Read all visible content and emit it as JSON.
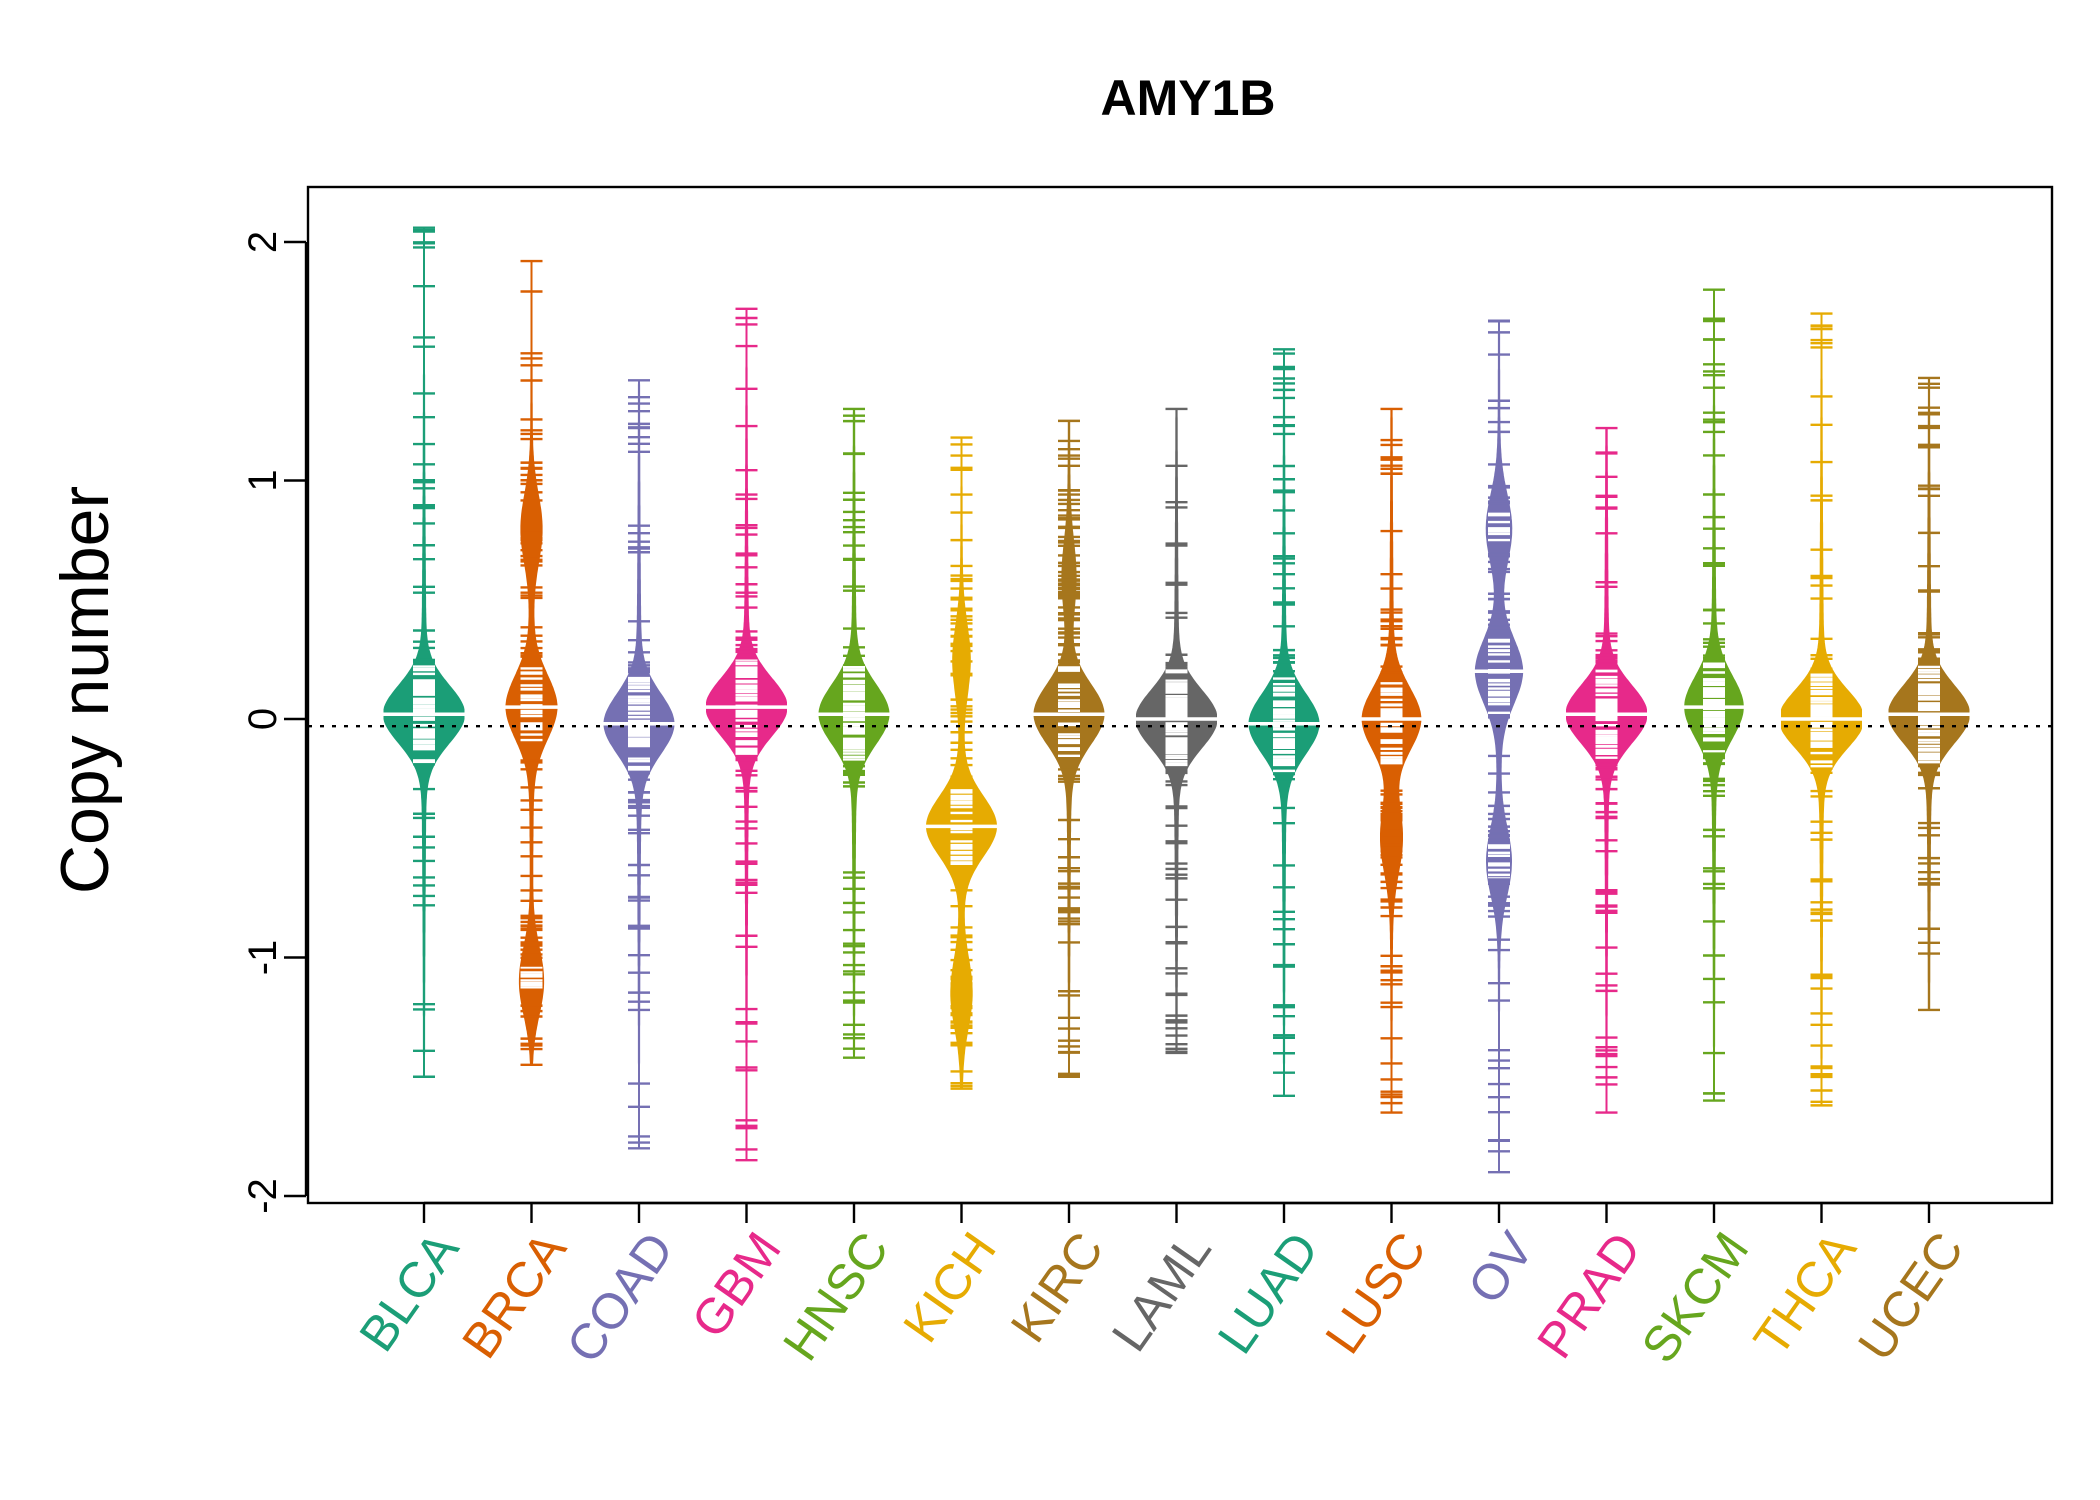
{
  "chart_data": {
    "type": "beanplot",
    "title": "AMY1B",
    "ylabel": "Copy number",
    "xlabel": "",
    "ylim": [
      -2.05,
      2.2
    ],
    "yticks": [
      -2,
      -1,
      0,
      1,
      2
    ],
    "ytick_labels": [
      "-2",
      "-1",
      "0",
      "1",
      "2"
    ],
    "reference_line": -0.03,
    "grid": false,
    "legend": "none",
    "categories": [
      "BLCA",
      "BRCA",
      "COAD",
      "GBM",
      "HNSC",
      "KICH",
      "KIRC",
      "LAML",
      "LUAD",
      "LUSC",
      "OV",
      "PRAD",
      "SKCM",
      "THCA",
      "UCEC"
    ],
    "colors": [
      "#1B9E77",
      "#D95F02",
      "#7570B3",
      "#E7298A",
      "#66A61E",
      "#E6AB02",
      "#A6761D",
      "#666666",
      "#1B9E77",
      "#D95F02",
      "#7570B3",
      "#E7298A",
      "#66A61E",
      "#E6AB02",
      "#A6761D"
    ],
    "series": [
      {
        "name": "BLCA",
        "min": -1.5,
        "max": 2.06,
        "median": 0.02,
        "modes": [
          [
            0.02,
            1.0
          ]
        ]
      },
      {
        "name": "BRCA",
        "min": -1.45,
        "max": 1.92,
        "median": 0.05,
        "modes": [
          [
            0.05,
            0.6
          ],
          [
            0.8,
            0.25
          ],
          [
            -1.1,
            0.3
          ]
        ]
      },
      {
        "name": "COAD",
        "min": -1.8,
        "max": 1.42,
        "median": -0.02,
        "modes": [
          [
            -0.02,
            0.85
          ]
        ]
      },
      {
        "name": "GBM",
        "min": -1.85,
        "max": 1.72,
        "median": 0.05,
        "modes": [
          [
            0.05,
            1.0
          ]
        ]
      },
      {
        "name": "HNSC",
        "min": -1.42,
        "max": 1.3,
        "median": 0.02,
        "modes": [
          [
            0.02,
            0.85
          ]
        ]
      },
      {
        "name": "KICH",
        "min": -1.55,
        "max": 1.18,
        "median": -0.45,
        "modes": [
          [
            -0.45,
            0.85
          ],
          [
            0.25,
            0.2
          ],
          [
            -1.15,
            0.25
          ]
        ]
      },
      {
        "name": "KIRC",
        "min": -1.5,
        "max": 1.25,
        "median": 0.02,
        "modes": [
          [
            0.02,
            0.85
          ],
          [
            0.6,
            0.15
          ]
        ]
      },
      {
        "name": "LAML",
        "min": -1.4,
        "max": 1.3,
        "median": 0.0,
        "modes": [
          [
            0.0,
            1.0
          ]
        ]
      },
      {
        "name": "LUAD",
        "min": -1.58,
        "max": 1.55,
        "median": -0.02,
        "modes": [
          [
            -0.02,
            0.85
          ]
        ]
      },
      {
        "name": "LUSC",
        "min": -1.65,
        "max": 1.3,
        "median": 0.0,
        "modes": [
          [
            0.0,
            0.7
          ],
          [
            -0.5,
            0.25
          ]
        ]
      },
      {
        "name": "OV",
        "min": -1.9,
        "max": 1.67,
        "median": 0.2,
        "modes": [
          [
            0.2,
            0.55
          ],
          [
            0.8,
            0.3
          ],
          [
            -0.6,
            0.3
          ]
        ]
      },
      {
        "name": "PRAD",
        "min": -1.65,
        "max": 1.22,
        "median": 0.02,
        "modes": [
          [
            0.02,
            1.0
          ]
        ]
      },
      {
        "name": "SKCM",
        "min": -1.6,
        "max": 1.8,
        "median": 0.05,
        "modes": [
          [
            0.05,
            0.7
          ]
        ]
      },
      {
        "name": "THCA",
        "min": -1.62,
        "max": 1.7,
        "median": 0.0,
        "modes": [
          [
            0.0,
            1.05
          ]
        ]
      },
      {
        "name": "UCEC",
        "min": -1.22,
        "max": 1.43,
        "median": 0.02,
        "modes": [
          [
            0.02,
            1.0
          ]
        ]
      }
    ]
  }
}
